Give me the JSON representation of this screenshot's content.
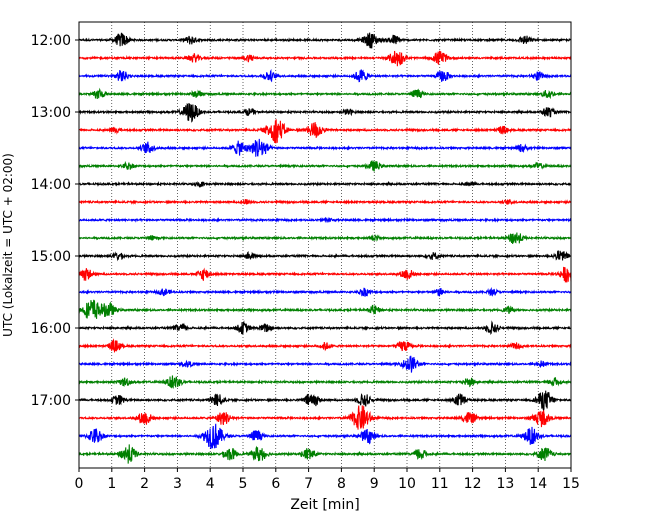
{
  "chart_data": {
    "type": "line",
    "title": "",
    "xlabel": "Zeit  [min]",
    "ylabel": "UTC (Lokalzeit = UTC + 02:00)",
    "xlim": [
      0,
      15
    ],
    "x_ticks": [
      "0",
      "1",
      "2",
      "3",
      "4",
      "5",
      "6",
      "7",
      "8",
      "9",
      "10",
      "11",
      "12",
      "13",
      "14",
      "15"
    ],
    "y_tick_labels": [
      "12:00",
      "13:00",
      "14:00",
      "15:00",
      "16:00",
      "17:00"
    ],
    "trace_interval_min": 15,
    "grid": "vertical dotted at each minute",
    "color_cycle": [
      "#000000",
      "#ff0000",
      "#0000ff",
      "#008000"
    ],
    "traces": [
      {
        "start": "12:00",
        "color": "#000000",
        "events": [
          [
            1.3,
            1.0
          ],
          [
            3.4,
            0.6
          ],
          [
            8.9,
            1.1
          ],
          [
            9.6,
            0.7
          ],
          [
            13.6,
            0.6
          ]
        ]
      },
      {
        "start": "12:15",
        "color": "#ff0000",
        "events": [
          [
            3.5,
            0.6
          ],
          [
            9.7,
            1.2
          ],
          [
            11.0,
            1.0
          ],
          [
            5.2,
            0.5
          ]
        ]
      },
      {
        "start": "12:30",
        "color": "#0000ff",
        "events": [
          [
            1.3,
            0.8
          ],
          [
            5.8,
            0.7
          ],
          [
            8.6,
            0.9
          ],
          [
            11.1,
            0.8
          ],
          [
            14.0,
            0.6
          ]
        ]
      },
      {
        "start": "12:45",
        "color": "#008000",
        "events": [
          [
            0.6,
            0.7
          ],
          [
            3.6,
            0.5
          ],
          [
            10.3,
            0.6
          ],
          [
            14.3,
            0.6
          ]
        ]
      },
      {
        "start": "13:00",
        "color": "#000000",
        "events": [
          [
            3.4,
            1.4
          ],
          [
            5.2,
            0.5
          ],
          [
            8.2,
            0.4
          ],
          [
            14.3,
            0.7
          ]
        ]
      },
      {
        "start": "13:15",
        "color": "#ff0000",
        "events": [
          [
            6.0,
            1.8
          ],
          [
            7.2,
            1.2
          ],
          [
            12.9,
            0.5
          ],
          [
            1.1,
            0.4
          ]
        ]
      },
      {
        "start": "13:30",
        "color": "#0000ff",
        "events": [
          [
            2.1,
            0.8
          ],
          [
            4.9,
            1.0
          ],
          [
            5.5,
            1.5
          ],
          [
            13.5,
            0.5
          ]
        ]
      },
      {
        "start": "13:45",
        "color": "#008000",
        "events": [
          [
            1.5,
            0.5
          ],
          [
            9.0,
            0.7
          ],
          [
            14.0,
            0.4
          ]
        ]
      },
      {
        "start": "14:00",
        "color": "#000000",
        "events": [
          [
            3.7,
            0.3
          ],
          [
            11.9,
            0.3
          ]
        ]
      },
      {
        "start": "14:15",
        "color": "#ff0000",
        "events": [
          [
            5.1,
            0.3
          ],
          [
            13.1,
            0.3
          ]
        ]
      },
      {
        "start": "14:30",
        "color": "#0000ff",
        "events": [
          [
            7.6,
            0.25
          ]
        ]
      },
      {
        "start": "14:45",
        "color": "#008000",
        "events": [
          [
            13.3,
            1.0
          ],
          [
            2.2,
            0.3
          ],
          [
            9.0,
            0.3
          ]
        ]
      },
      {
        "start": "15:00",
        "color": "#000000",
        "events": [
          [
            1.2,
            0.5
          ],
          [
            5.2,
            0.5
          ],
          [
            10.8,
            0.5
          ],
          [
            14.7,
            0.8
          ]
        ]
      },
      {
        "start": "15:15",
        "color": "#ff0000",
        "events": [
          [
            0.2,
            0.9
          ],
          [
            3.8,
            0.8
          ],
          [
            10.0,
            0.8
          ],
          [
            14.9,
            1.2
          ]
        ]
      },
      {
        "start": "15:30",
        "color": "#0000ff",
        "events": [
          [
            2.6,
            0.5
          ],
          [
            8.7,
            0.6
          ],
          [
            11.0,
            0.5
          ],
          [
            12.6,
            0.4
          ]
        ]
      },
      {
        "start": "15:45",
        "color": "#008000",
        "events": [
          [
            0.4,
            1.6
          ],
          [
            0.9,
            1.0
          ],
          [
            9.0,
            0.6
          ],
          [
            13.1,
            0.4
          ]
        ]
      },
      {
        "start": "16:00",
        "color": "#000000",
        "events": [
          [
            3.1,
            0.6
          ],
          [
            5.0,
            0.8
          ],
          [
            5.7,
            0.6
          ],
          [
            12.6,
            0.8
          ]
        ]
      },
      {
        "start": "16:15",
        "color": "#ff0000",
        "events": [
          [
            1.1,
            0.8
          ],
          [
            7.5,
            0.5
          ],
          [
            9.9,
            0.8
          ],
          [
            13.3,
            0.4
          ]
        ]
      },
      {
        "start": "16:30",
        "color": "#0000ff",
        "events": [
          [
            3.3,
            0.4
          ],
          [
            10.1,
            1.2
          ],
          [
            14.1,
            0.4
          ]
        ]
      },
      {
        "start": "16:45",
        "color": "#008000",
        "events": [
          [
            1.4,
            0.6
          ],
          [
            2.9,
            1.0
          ],
          [
            11.9,
            0.6
          ],
          [
            14.5,
            0.6
          ]
        ]
      },
      {
        "start": "17:00",
        "color": "#000000",
        "events": [
          [
            1.2,
            0.7
          ],
          [
            4.2,
            0.9
          ],
          [
            7.1,
            1.1
          ],
          [
            8.7,
            0.9
          ],
          [
            11.6,
            0.9
          ],
          [
            14.2,
            1.4
          ]
        ]
      },
      {
        "start": "17:15",
        "color": "#ff0000",
        "events": [
          [
            2.0,
            1.0
          ],
          [
            4.4,
            1.0
          ],
          [
            8.6,
            1.8
          ],
          [
            11.9,
            0.9
          ],
          [
            14.1,
            1.2
          ]
        ]
      },
      {
        "start": "17:30",
        "color": "#0000ff",
        "events": [
          [
            0.5,
            1.1
          ],
          [
            4.1,
            1.9
          ],
          [
            5.4,
            0.8
          ],
          [
            8.8,
            1.0
          ],
          [
            13.8,
            1.2
          ]
        ]
      },
      {
        "start": "17:45",
        "color": "#008000",
        "events": [
          [
            1.5,
            1.3
          ],
          [
            4.6,
            0.9
          ],
          [
            5.5,
            1.1
          ],
          [
            7.0,
            0.9
          ],
          [
            10.4,
            0.8
          ],
          [
            14.2,
            1.0
          ]
        ]
      }
    ]
  }
}
